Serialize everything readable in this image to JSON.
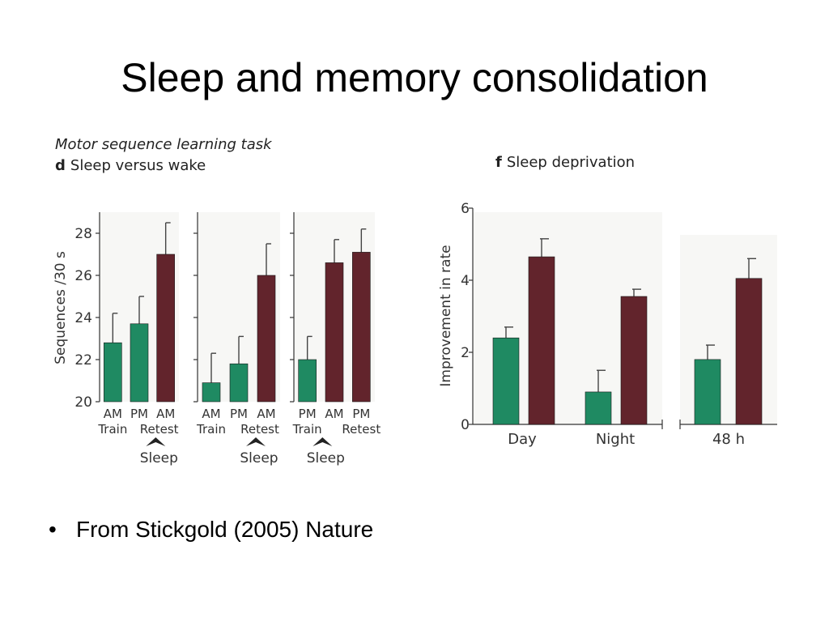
{
  "slide": {
    "title": "Sleep and memory consolidation",
    "bullet": "From Stickgold (2005) Nature"
  },
  "figure_d": {
    "caption_top": "Motor sequence learning task",
    "panel_letter": "d",
    "panel_title": "Sleep versus wake"
  },
  "figure_f": {
    "panel_letter": "f",
    "panel_title": "Sleep deprivation"
  },
  "colors": {
    "green": "#1f8a62",
    "maroon": "#62242c",
    "axis": "#333333",
    "error": "#444444"
  },
  "chart_data": [
    {
      "type": "bar",
      "panel": "d",
      "ylabel": "Sequences /30 s",
      "ylim": [
        20,
        29
      ],
      "yticks": [
        20,
        22,
        24,
        26,
        28
      ],
      "groups": [
        {
          "bars": [
            {
              "label_top": "AM",
              "label_bottom": "Train",
              "value": 22.8,
              "error": 1.4,
              "color": "green"
            },
            {
              "label_top": "PM",
              "label_bottom": "",
              "value": 23.7,
              "error": 1.3,
              "color": "green"
            },
            {
              "label_top": "AM",
              "label_bottom": "",
              "value": 27.0,
              "error": 1.5,
              "color": "maroon"
            }
          ],
          "second_label": "Retest",
          "sleep_label": "Sleep"
        },
        {
          "bars": [
            {
              "label_top": "AM",
              "label_bottom": "Train",
              "value": 20.9,
              "error": 1.4,
              "color": "green"
            },
            {
              "label_top": "PM",
              "label_bottom": "",
              "value": 21.8,
              "error": 1.3,
              "color": "green"
            },
            {
              "label_top": "AM",
              "label_bottom": "",
              "value": 26.0,
              "error": 1.5,
              "color": "maroon"
            }
          ],
          "second_label": "Retest",
          "sleep_label": "Sleep"
        },
        {
          "bars": [
            {
              "label_top": "PM",
              "label_bottom": "Train",
              "value": 22.0,
              "error": 1.1,
              "color": "green"
            },
            {
              "label_top": "AM",
              "label_bottom": "",
              "value": 26.6,
              "error": 1.1,
              "color": "maroon"
            },
            {
              "label_top": "PM",
              "label_bottom": "Retest",
              "value": 27.1,
              "error": 1.1,
              "color": "maroon"
            }
          ],
          "second_label": "",
          "sleep_label": "Sleep"
        }
      ]
    },
    {
      "type": "bar",
      "panel": "f",
      "ylabel": "Improvement in rate",
      "ylim": [
        0,
        6
      ],
      "yticks": [
        0,
        2,
        4,
        6
      ],
      "categories": [
        "Day",
        "Night",
        "48 h"
      ],
      "bars": [
        {
          "category": "Day",
          "value": 2.4,
          "error": 0.3,
          "color": "green"
        },
        {
          "category": "Day",
          "value": 4.65,
          "error": 0.5,
          "color": "maroon"
        },
        {
          "category": "Night",
          "value": 0.9,
          "error": 0.6,
          "color": "green"
        },
        {
          "category": "Night",
          "value": 3.55,
          "error": 0.2,
          "color": "maroon"
        },
        {
          "category": "48 h",
          "value": 1.8,
          "error": 0.4,
          "color": "green"
        },
        {
          "category": "48 h",
          "value": 4.05,
          "error": 0.55,
          "color": "maroon"
        }
      ]
    }
  ]
}
